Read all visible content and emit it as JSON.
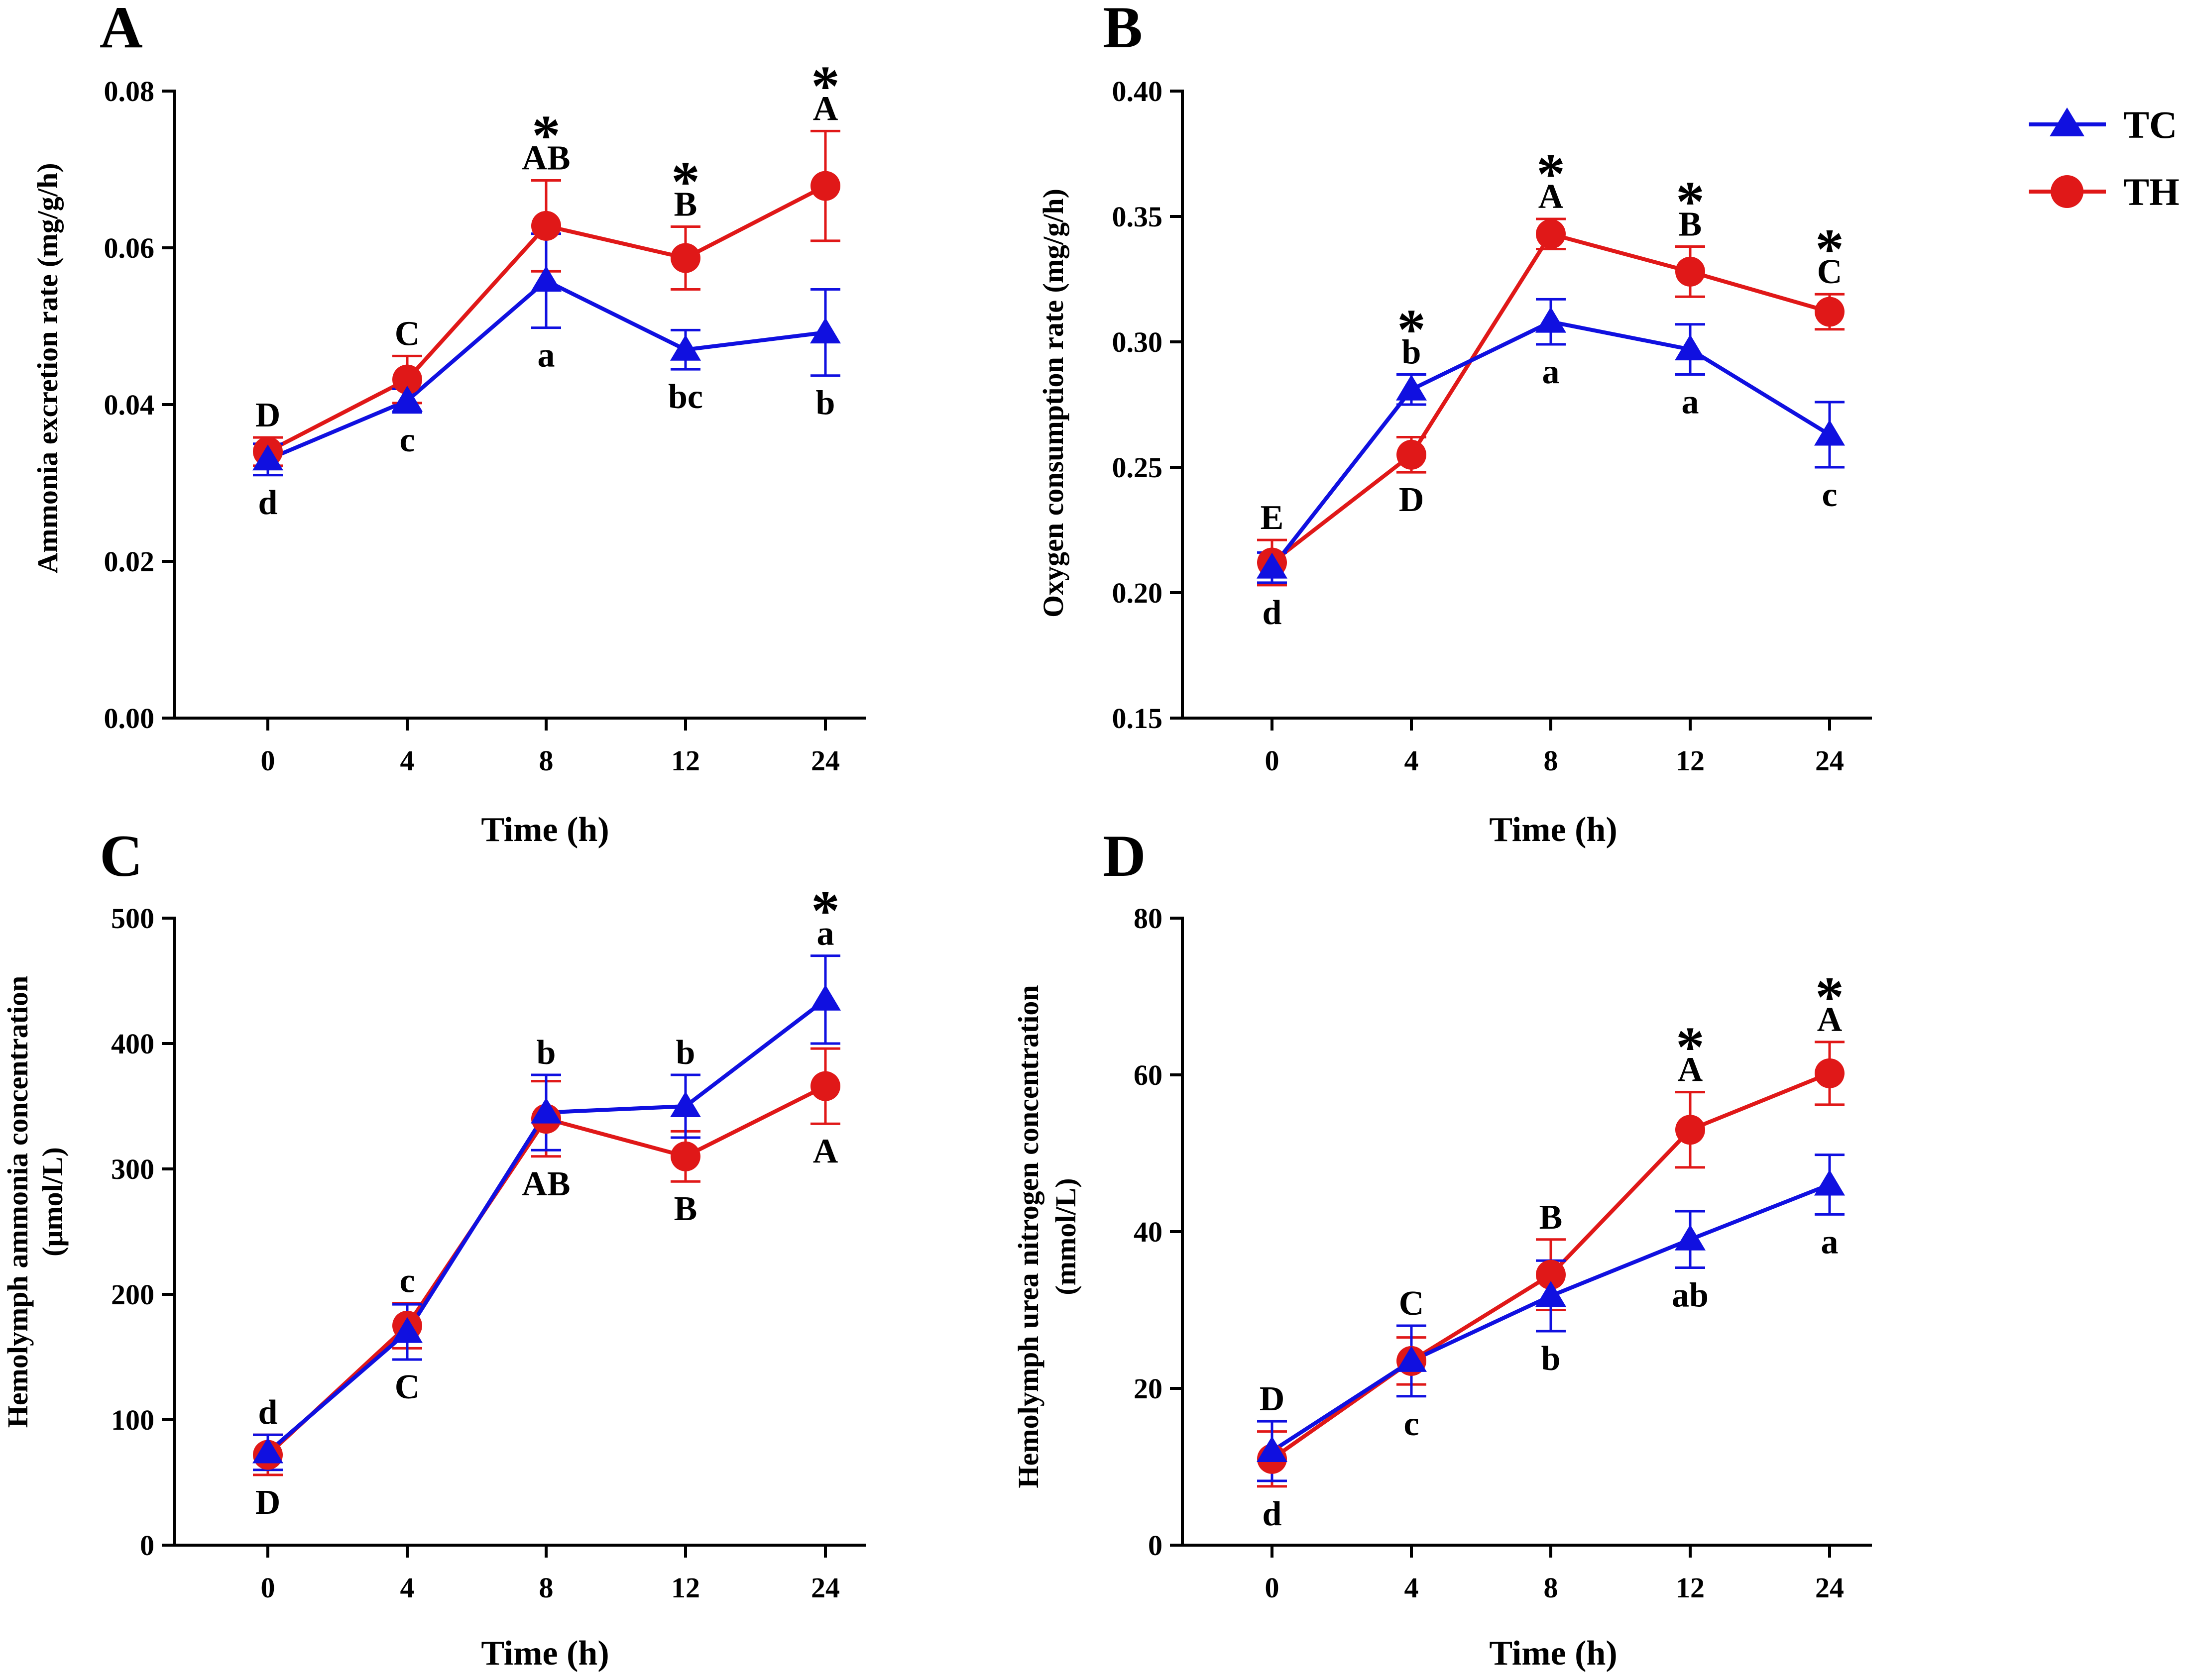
{
  "colors": {
    "TC": "#1010e0",
    "TH": "#e01818",
    "axis": "#000000"
  },
  "legend": [
    {
      "name": "TC",
      "marker": "triangle"
    },
    {
      "name": "TH",
      "marker": "circle"
    }
  ],
  "chart_data": [
    {
      "panel": "A",
      "type": "line",
      "xlabel": "Time (h)",
      "ylabel": "Ammonia excretion rate (mg/g/h)",
      "categories": [
        "0",
        "4",
        "8",
        "12",
        "24"
      ],
      "ylim": [
        0,
        0.08
      ],
      "yticks": [
        "0.00",
        "0.02",
        "0.04",
        "0.06",
        "0.08"
      ],
      "tick_values": [
        0,
        0.02,
        0.04,
        0.06,
        0.08
      ],
      "series": [
        {
          "name": "TC",
          "values": [
            0.033,
            0.0405,
            0.0558,
            0.047,
            0.0492
          ],
          "errors": [
            0.002,
            0.0015,
            0.006,
            0.0025,
            0.0055
          ],
          "letters": [
            "d",
            "c",
            "a",
            "bc",
            "b"
          ]
        },
        {
          "name": "TH",
          "values": [
            0.034,
            0.0432,
            0.0628,
            0.0587,
            0.0679
          ],
          "errors": [
            0.0018,
            0.003,
            0.0058,
            0.004,
            0.007
          ],
          "letters": [
            "D",
            "C",
            "AB",
            "B",
            "A"
          ]
        }
      ],
      "upper_letters": [
        "D",
        "C",
        "AB",
        "B",
        "A"
      ],
      "lower_letters": [
        "d",
        "c",
        "a",
        "bc",
        "b"
      ],
      "significance": [
        "",
        "",
        "*",
        "*",
        "*"
      ]
    },
    {
      "panel": "B",
      "type": "line",
      "xlabel": "Time (h)",
      "ylabel": "Oxygen consumption rate (mg/g/h)",
      "categories": [
        "0",
        "4",
        "8",
        "12",
        "24"
      ],
      "ylim": [
        0.15,
        0.4
      ],
      "yticks": [
        "0.15",
        "0.20",
        "0.25",
        "0.30",
        "0.35",
        "0.40"
      ],
      "tick_values": [
        0.15,
        0.2,
        0.25,
        0.3,
        0.35,
        0.4
      ],
      "series": [
        {
          "name": "TC",
          "values": [
            0.21,
            0.281,
            0.308,
            0.297,
            0.263
          ],
          "errors": [
            0.006,
            0.006,
            0.009,
            0.01,
            0.013
          ],
          "letters": [
            "d",
            "b",
            "a",
            "a",
            "c"
          ]
        },
        {
          "name": "TH",
          "values": [
            0.212,
            0.255,
            0.343,
            0.328,
            0.312
          ],
          "errors": [
            0.009,
            0.007,
            0.006,
            0.01,
            0.007
          ],
          "letters": [
            "E",
            "D",
            "A",
            "B",
            "C"
          ]
        }
      ],
      "upper_letters": [
        "E",
        "b",
        "A",
        "B",
        "C"
      ],
      "lower_letters": [
        "d",
        "D",
        "a",
        "a",
        "c"
      ],
      "significance": [
        "",
        "*",
        "*",
        "*",
        "*"
      ]
    },
    {
      "panel": "C",
      "type": "line",
      "xlabel": "Time (h)",
      "ylabel_lines": [
        "Hemolymph ammonia concentration",
        "(μmol/L)"
      ],
      "categories": [
        "0",
        "4",
        "8",
        "12",
        "24"
      ],
      "ylim": [
        0,
        500
      ],
      "yticks": [
        "0",
        "100",
        "200",
        "300",
        "400",
        "500"
      ],
      "tick_values": [
        0,
        100,
        200,
        300,
        400,
        500
      ],
      "series": [
        {
          "name": "TC",
          "values": [
            74,
            170,
            345,
            350,
            435
          ],
          "errors": [
            14,
            22,
            30,
            25,
            35
          ],
          "letters": [
            "d",
            "c",
            "b",
            "b",
            "a"
          ]
        },
        {
          "name": "TH",
          "values": [
            72,
            175,
            340,
            310,
            366
          ],
          "errors": [
            16,
            18,
            30,
            20,
            30
          ],
          "letters": [
            "D",
            "C",
            "AB",
            "B",
            "A"
          ]
        }
      ],
      "upper_letters": [
        "d",
        "c",
        "b",
        "b",
        "a"
      ],
      "lower_letters": [
        "D",
        "C",
        "AB",
        "B",
        "A"
      ],
      "significance": [
        "",
        "",
        "",
        "",
        "*"
      ]
    },
    {
      "panel": "D",
      "type": "line",
      "xlabel": "Time (h)",
      "ylabel_lines": [
        "Hemolymph urea nitrogen concentration",
        "(mmol/L)"
      ],
      "categories": [
        "0",
        "4",
        "8",
        "12",
        "24"
      ],
      "ylim": [
        0,
        80
      ],
      "yticks": [
        "0",
        "20",
        "40",
        "60",
        "80"
      ],
      "tick_values": [
        0,
        20,
        40,
        60,
        80
      ],
      "series": [
        {
          "name": "TC",
          "values": [
            12.0,
            23.5,
            31.8,
            39.0,
            46.0
          ],
          "errors": [
            3.8,
            4.5,
            4.5,
            3.6,
            3.8
          ],
          "letters": [
            "d",
            "c",
            "b",
            "ab",
            "a"
          ]
        },
        {
          "name": "TH",
          "values": [
            11.0,
            23.5,
            34.5,
            53.0,
            60.2
          ],
          "errors": [
            3.5,
            3.0,
            4.5,
            4.8,
            4.0
          ],
          "letters": [
            "D",
            "C",
            "B",
            "A",
            "A"
          ]
        }
      ],
      "upper_letters": [
        "D",
        "C",
        "B",
        "A",
        "A"
      ],
      "lower_letters": [
        "d",
        "c",
        "b",
        "ab",
        "a"
      ],
      "significance": [
        "",
        "",
        "",
        "*",
        "*"
      ]
    }
  ]
}
